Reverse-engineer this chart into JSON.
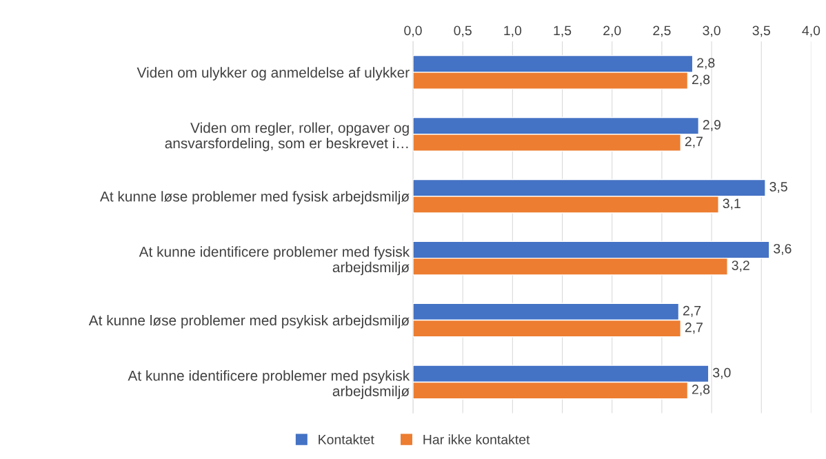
{
  "chart_data": {
    "type": "bar",
    "orientation": "horizontal",
    "categories": [
      "Viden om ulykker og anmeldelse af ulykker",
      "Viden om regler, roller, opgaver og\nansvarsfordeling, som er beskrevet i…",
      "At kunne løse problemer med fysisk arbejdsmiljø",
      "At kunne identificere problemer med fysisk\narbejdsmiljø",
      "At kunne løse problemer med psykisk arbejdsmiljø",
      "At kunne identificere problemer med psykisk\narbejdsmiljø"
    ],
    "series": [
      {
        "name": "Kontaktet",
        "color": "#4472c4",
        "values": [
          2.81,
          2.87,
          3.54,
          3.58,
          2.67,
          2.97
        ],
        "value_labels": [
          "2,8",
          "2,9",
          "3,5",
          "3,6",
          "2,7",
          "3,0"
        ]
      },
      {
        "name": "Har ikke kontaktet",
        "color": "#ed7d31",
        "values": [
          2.76,
          2.69,
          3.07,
          3.16,
          2.69,
          2.76
        ],
        "value_labels": [
          "2,8",
          "2,7",
          "3,1",
          "3,2",
          "2,7",
          "2,8"
        ]
      }
    ],
    "xlim": [
      0,
      4
    ],
    "xticks": [
      {
        "value": 0,
        "label": "0,0"
      },
      {
        "value": 0.5,
        "label": "0,5"
      },
      {
        "value": 1,
        "label": "1,0"
      },
      {
        "value": 1.5,
        "label": "1,5"
      },
      {
        "value": 2,
        "label": "2,0"
      },
      {
        "value": 2.5,
        "label": "2,5"
      },
      {
        "value": 3,
        "label": "3,0"
      },
      {
        "value": 3.5,
        "label": "3,5"
      },
      {
        "value": 4,
        "label": "4,0"
      }
    ],
    "grid": "x",
    "legend": "bottom"
  }
}
